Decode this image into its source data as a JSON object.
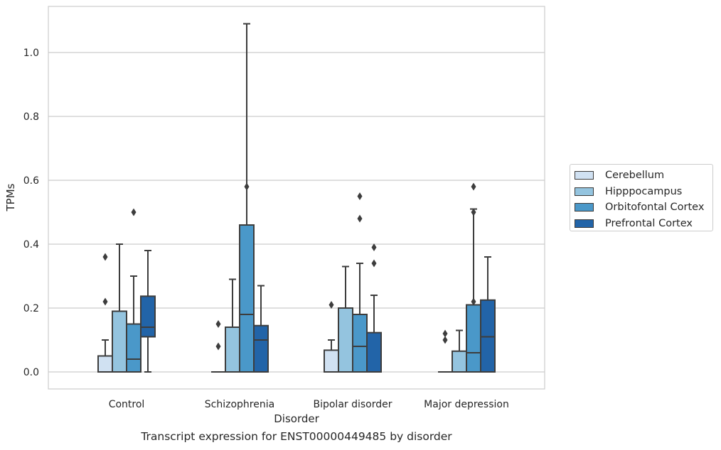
{
  "chart_data": {
    "type": "box",
    "xlabel": "Disorder",
    "ylabel": "TPMs",
    "caption": "Transcript expression for ENST00000449485 by disorder",
    "categories": [
      "Control",
      "Schizophrenia",
      "Bipolar disorder",
      "Major depression"
    ],
    "ylim": [
      -0.05,
      1.15
    ],
    "yticks": [
      "0.0",
      "0.2",
      "0.4",
      "0.6",
      "0.8",
      "1.0"
    ],
    "grid": true,
    "legend_position": "right",
    "series": [
      {
        "name": "Cerebellum",
        "color": "#d0e1f2",
        "boxes": [
          {
            "q1": 0.0,
            "median": 0.0,
            "q3": 0.05,
            "whisker_low": 0.0,
            "whisker_high": 0.1,
            "outliers": [
              0.22,
              0.36
            ]
          },
          {
            "q1": 0.0,
            "median": 0.0,
            "q3": 0.0,
            "whisker_low": 0.0,
            "whisker_high": 0.0,
            "outliers": [
              0.08,
              0.15
            ]
          },
          {
            "q1": 0.0,
            "median": 0.0,
            "q3": 0.068,
            "whisker_low": 0.0,
            "whisker_high": 0.1,
            "outliers": [
              0.21
            ]
          },
          {
            "q1": 0.0,
            "median": 0.0,
            "q3": 0.0,
            "whisker_low": 0.0,
            "whisker_high": 0.0,
            "outliers": [
              0.1,
              0.12
            ]
          }
        ]
      },
      {
        "name": "Hipppocampus",
        "color": "#94c4df",
        "boxes": [
          {
            "q1": 0.0,
            "median": 0.0,
            "q3": 0.19,
            "whisker_low": 0.0,
            "whisker_high": 0.4,
            "outliers": []
          },
          {
            "q1": 0.0,
            "median": 0.0,
            "q3": 0.14,
            "whisker_low": 0.0,
            "whisker_high": 0.29,
            "outliers": []
          },
          {
            "q1": 0.0,
            "median": 0.0,
            "q3": 0.2,
            "whisker_low": 0.0,
            "whisker_high": 0.33,
            "outliers": []
          },
          {
            "q1": 0.0,
            "median": 0.0,
            "q3": 0.065,
            "whisker_low": 0.0,
            "whisker_high": 0.13,
            "outliers": []
          }
        ]
      },
      {
        "name": "Orbitofontal Cortex",
        "color": "#4a98c9",
        "boxes": [
          {
            "q1": 0.0,
            "median": 0.04,
            "q3": 0.15,
            "whisker_low": 0.0,
            "whisker_high": 0.3,
            "outliers": [
              0.5
            ]
          },
          {
            "q1": 0.0,
            "median": 0.18,
            "q3": 0.46,
            "whisker_low": 0.0,
            "whisker_high": 1.09,
            "outliers": [
              0.58
            ]
          },
          {
            "q1": 0.0,
            "median": 0.08,
            "q3": 0.18,
            "whisker_low": 0.0,
            "whisker_high": 0.34,
            "outliers": [
              0.48,
              0.55
            ]
          },
          {
            "q1": 0.0,
            "median": 0.06,
            "q3": 0.21,
            "whisker_low": 0.0,
            "whisker_high": 0.51,
            "outliers": [
              0.22,
              0.5,
              0.58
            ]
          }
        ]
      },
      {
        "name": "Prefrontal Cortex",
        "color": "#2264a8",
        "boxes": [
          {
            "q1": 0.11,
            "median": 0.14,
            "q3": 0.237,
            "whisker_low": 0.0,
            "whisker_high": 0.38,
            "outliers": []
          },
          {
            "q1": 0.0,
            "median": 0.1,
            "q3": 0.145,
            "whisker_low": 0.0,
            "whisker_high": 0.27,
            "outliers": []
          },
          {
            "q1": 0.0,
            "median": 0.0,
            "q3": 0.123,
            "whisker_low": 0.0,
            "whisker_high": 0.24,
            "outliers": [
              0.34,
              0.39
            ]
          },
          {
            "q1": 0.0,
            "median": 0.11,
            "q3": 0.225,
            "whisker_low": 0.0,
            "whisker_high": 0.36,
            "outliers": []
          }
        ]
      }
    ]
  }
}
